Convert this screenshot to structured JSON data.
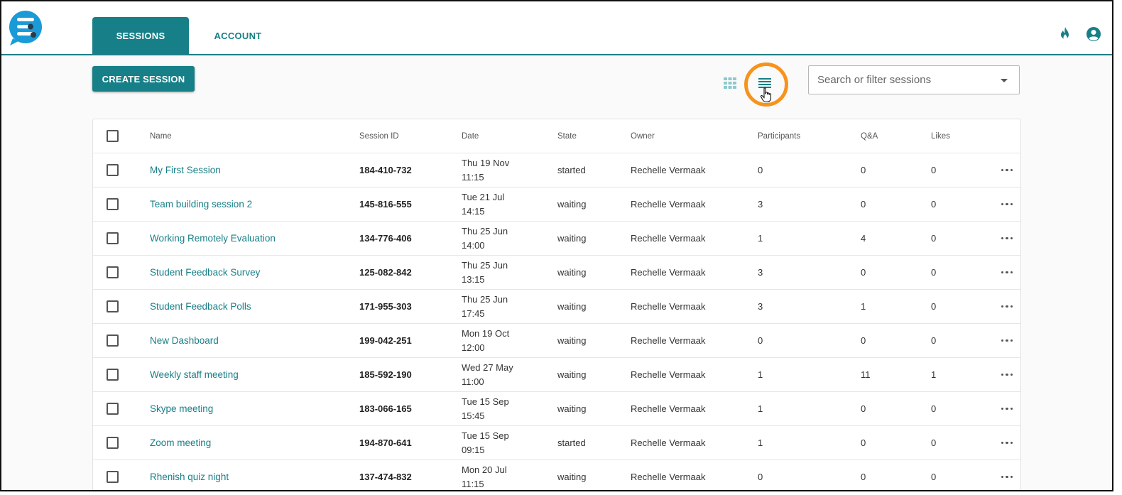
{
  "app": {
    "tabs": [
      {
        "label": "SESSIONS",
        "active": true
      },
      {
        "label": "ACCOUNT",
        "active": false
      }
    ]
  },
  "toolbar": {
    "create_label": "CREATE SESSION",
    "search_placeholder": "Search or filter sessions",
    "view_mode": "list"
  },
  "table": {
    "headers": {
      "name": "Name",
      "session_id": "Session ID",
      "date": "Date",
      "state": "State",
      "owner": "Owner",
      "participants": "Participants",
      "qa": "Q&A",
      "likes": "Likes"
    },
    "rows": [
      {
        "name": "My First Session",
        "session_id": "184-410-732",
        "date": "Thu 19 Nov\n11:15",
        "state": "started",
        "owner": "Rechelle Vermaak",
        "participants": "0",
        "qa": "0",
        "likes": "0"
      },
      {
        "name": "Team building session 2",
        "session_id": "145-816-555",
        "date": "Tue 21 Jul\n14:15",
        "state": "waiting",
        "owner": "Rechelle Vermaak",
        "participants": "3",
        "qa": "0",
        "likes": "0"
      },
      {
        "name": "Working Remotely Evaluation",
        "session_id": "134-776-406",
        "date": "Thu 25 Jun\n14:00",
        "state": "waiting",
        "owner": "Rechelle Vermaak",
        "participants": "1",
        "qa": "4",
        "likes": "0"
      },
      {
        "name": "Student Feedback Survey",
        "session_id": "125-082-842",
        "date": "Thu 25 Jun\n13:15",
        "state": "waiting",
        "owner": "Rechelle Vermaak",
        "participants": "3",
        "qa": "0",
        "likes": "0"
      },
      {
        "name": "Student Feedback Polls",
        "session_id": "171-955-303",
        "date": "Thu 25 Jun\n17:45",
        "state": "waiting",
        "owner": "Rechelle Vermaak",
        "participants": "3",
        "qa": "1",
        "likes": "0"
      },
      {
        "name": "New Dashboard",
        "session_id": "199-042-251",
        "date": "Mon 19 Oct\n12:00",
        "state": "waiting",
        "owner": "Rechelle Vermaak",
        "participants": "0",
        "qa": "0",
        "likes": "0"
      },
      {
        "name": "Weekly staff meeting",
        "session_id": "185-592-190",
        "date": "Wed 27 May\n11:00",
        "state": "waiting",
        "owner": "Rechelle Vermaak",
        "participants": "1",
        "qa": "11",
        "likes": "1"
      },
      {
        "name": "Skype meeting",
        "session_id": "183-066-165",
        "date": "Tue 15 Sep\n15:45",
        "state": "waiting",
        "owner": "Rechelle Vermaak",
        "participants": "1",
        "qa": "0",
        "likes": "0"
      },
      {
        "name": "Zoom meeting",
        "session_id": "194-870-641",
        "date": "Tue 15 Sep\n09:15",
        "state": "started",
        "owner": "Rechelle Vermaak",
        "participants": "1",
        "qa": "0",
        "likes": "0"
      },
      {
        "name": "Rhenish quiz night",
        "session_id": "137-474-832",
        "date": "Mon 20 Jul\n11:15",
        "state": "waiting",
        "owner": "Rechelle Vermaak",
        "participants": "0",
        "qa": "0",
        "likes": "0"
      }
    ]
  },
  "icons": [
    "app-logo-icon",
    "flame-icon",
    "user-account-icon",
    "grid-view-icon",
    "list-view-icon",
    "hand-cursor-icon",
    "more-options-icon",
    "dropdown-caret-icon"
  ],
  "colors": {
    "accent": "#177f87",
    "highlight_ring": "#f7931d",
    "logo_blue": "#1a9bd7"
  }
}
